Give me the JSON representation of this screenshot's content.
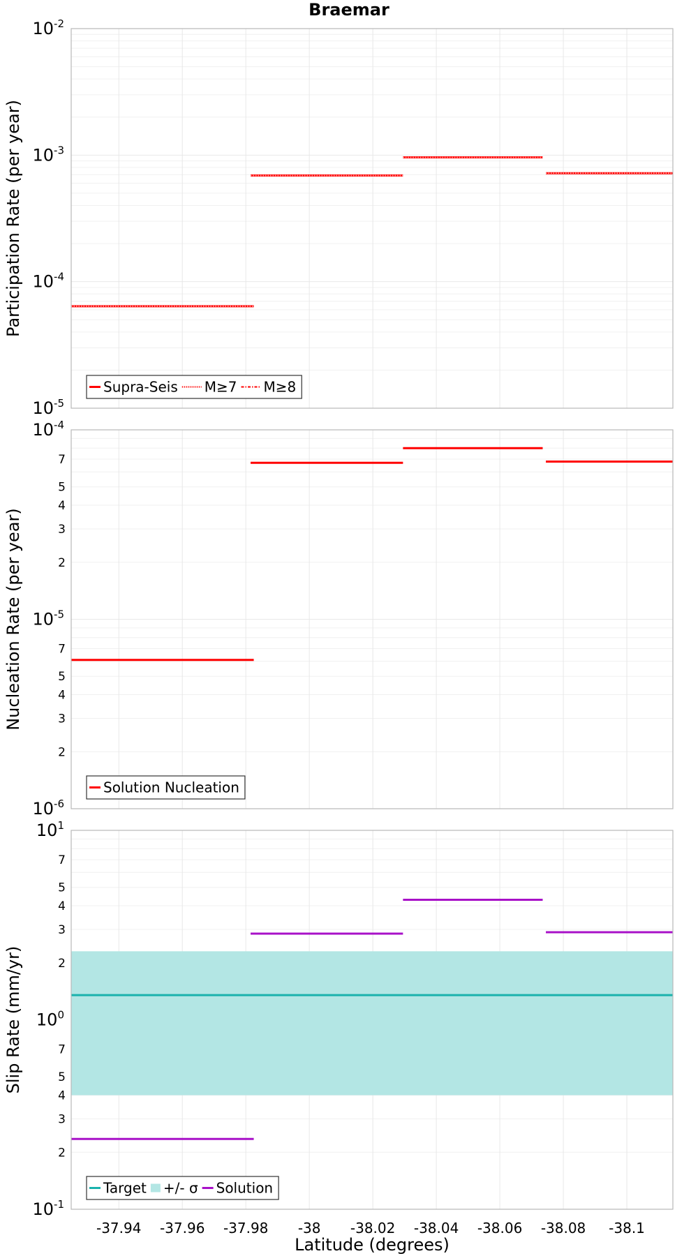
{
  "title": "Braemar",
  "xlabel": "Latitude (degrees)",
  "x_ticks": [
    "-37.94",
    "-37.96",
    "-37.98",
    "-38",
    "-38.02",
    "-38.04",
    "-38.06",
    "-38.08",
    "-38.1"
  ],
  "chart_data": [
    {
      "type": "line",
      "panel": "participation",
      "ylabel": "Participation Rate (per year)",
      "yscale": "log",
      "xlim": [
        -37.925,
        -38.1145
      ],
      "ylim": [
        1e-05,
        0.01
      ],
      "y_tick_labels": [
        {
          "base": "10",
          "exp": "-5",
          "value": 1e-05
        },
        {
          "base": "10",
          "exp": "-4",
          "value": 0.0001
        },
        {
          "base": "10",
          "exp": "-3",
          "value": 0.001
        },
        {
          "base": "10",
          "exp": "-2",
          "value": 0.01
        }
      ],
      "minor_tick_labels": [],
      "grid": true,
      "legend_position": "bottom-left",
      "series": [
        {
          "name": "Supra-Seis",
          "color": "#ff0000",
          "style": "solid",
          "segments": [
            {
              "x": [
                -37.925,
                -37.9825
              ],
              "y": 6.4e-05
            },
            {
              "x": [
                -37.9815,
                -38.0295
              ],
              "y": 0.00069
            },
            {
              "x": [
                -38.0295,
                -38.0735
              ],
              "y": 0.00096
            },
            {
              "x": [
                -38.0745,
                -38.1145
              ],
              "y": 0.00072
            }
          ]
        },
        {
          "name": "M≥7",
          "color": "#ff0000",
          "style": "dotted",
          "segments": [
            {
              "x": [
                -37.925,
                -37.9825
              ],
              "y": 6.4e-05
            },
            {
              "x": [
                -37.9815,
                -38.0295
              ],
              "y": 0.00069
            },
            {
              "x": [
                -38.0295,
                -38.0735
              ],
              "y": 0.00096
            },
            {
              "x": [
                -38.0745,
                -38.1145
              ],
              "y": 0.00072
            }
          ]
        },
        {
          "name": "M≥8",
          "color": "#ff0000",
          "style": "dashdot",
          "segments": []
        }
      ]
    },
    {
      "type": "line",
      "panel": "nucleation",
      "ylabel": "Nucleation Rate (per year)",
      "yscale": "log",
      "xlim": [
        -37.925,
        -38.1145
      ],
      "ylim": [
        1e-06,
        0.0001
      ],
      "y_tick_labels": [
        {
          "base": "10",
          "exp": "-6",
          "value": 1e-06
        },
        {
          "base": "10",
          "exp": "-5",
          "value": 1e-05
        },
        {
          "base": "10",
          "exp": "-4",
          "value": 0.0001
        }
      ],
      "minor_tick_labels": [
        {
          "label": "2",
          "value": 2e-06
        },
        {
          "label": "3",
          "value": 3e-06
        },
        {
          "label": "4",
          "value": 4e-06
        },
        {
          "label": "5",
          "value": 5e-06
        },
        {
          "label": "7",
          "value": 7e-06
        },
        {
          "label": "2",
          "value": 2e-05
        },
        {
          "label": "3",
          "value": 3e-05
        },
        {
          "label": "4",
          "value": 4e-05
        },
        {
          "label": "5",
          "value": 5e-05
        },
        {
          "label": "7",
          "value": 7e-05
        }
      ],
      "grid": true,
      "legend_position": "bottom-left",
      "series": [
        {
          "name": "Solution Nucleation",
          "color": "#ff0000",
          "style": "solid",
          "segments": [
            {
              "x": [
                -37.925,
                -37.9825
              ],
              "y": 6.1e-06
            },
            {
              "x": [
                -37.9815,
                -38.0295
              ],
              "y": 6.7e-05
            },
            {
              "x": [
                -38.0295,
                -38.0735
              ],
              "y": 8e-05
            },
            {
              "x": [
                -38.0745,
                -38.1145
              ],
              "y": 6.8e-05
            }
          ]
        }
      ]
    },
    {
      "type": "line",
      "panel": "slip",
      "ylabel": "Slip Rate (mm/yr)",
      "yscale": "log",
      "xlim": [
        -37.925,
        -38.1145
      ],
      "ylim": [
        0.1,
        10
      ],
      "y_tick_labels": [
        {
          "base": "10",
          "exp": "-1",
          "value": 0.1
        },
        {
          "base": "10",
          "exp": "0",
          "value": 1
        },
        {
          "base": "10",
          "exp": "1",
          "value": 10
        }
      ],
      "minor_tick_labels": [
        {
          "label": "2",
          "value": 0.2
        },
        {
          "label": "3",
          "value": 0.3
        },
        {
          "label": "4",
          "value": 0.4
        },
        {
          "label": "5",
          "value": 0.5
        },
        {
          "label": "7",
          "value": 0.7
        },
        {
          "label": "2",
          "value": 2
        },
        {
          "label": "3",
          "value": 3
        },
        {
          "label": "4",
          "value": 4
        },
        {
          "label": "5",
          "value": 5
        },
        {
          "label": "7",
          "value": 7
        }
      ],
      "grid": true,
      "legend_position": "bottom-left",
      "band": {
        "name": "+/- σ",
        "color": "#b3e6e4",
        "range": [
          0.4,
          2.3
        ]
      },
      "series": [
        {
          "name": "Target",
          "color": "#1ab2ad",
          "style": "solid",
          "segments": [
            {
              "x": [
                -37.925,
                -38.1145
              ],
              "y": 1.35
            }
          ]
        },
        {
          "name": "Solution",
          "color": "#a811c8",
          "style": "solid",
          "segments": [
            {
              "x": [
                -37.925,
                -37.9825
              ],
              "y": 0.235
            },
            {
              "x": [
                -37.9815,
                -38.0295
              ],
              "y": 2.85
            },
            {
              "x": [
                -38.0295,
                -38.0735
              ],
              "y": 4.3
            },
            {
              "x": [
                -38.0745,
                -38.1145
              ],
              "y": 2.9
            }
          ]
        }
      ]
    }
  ]
}
